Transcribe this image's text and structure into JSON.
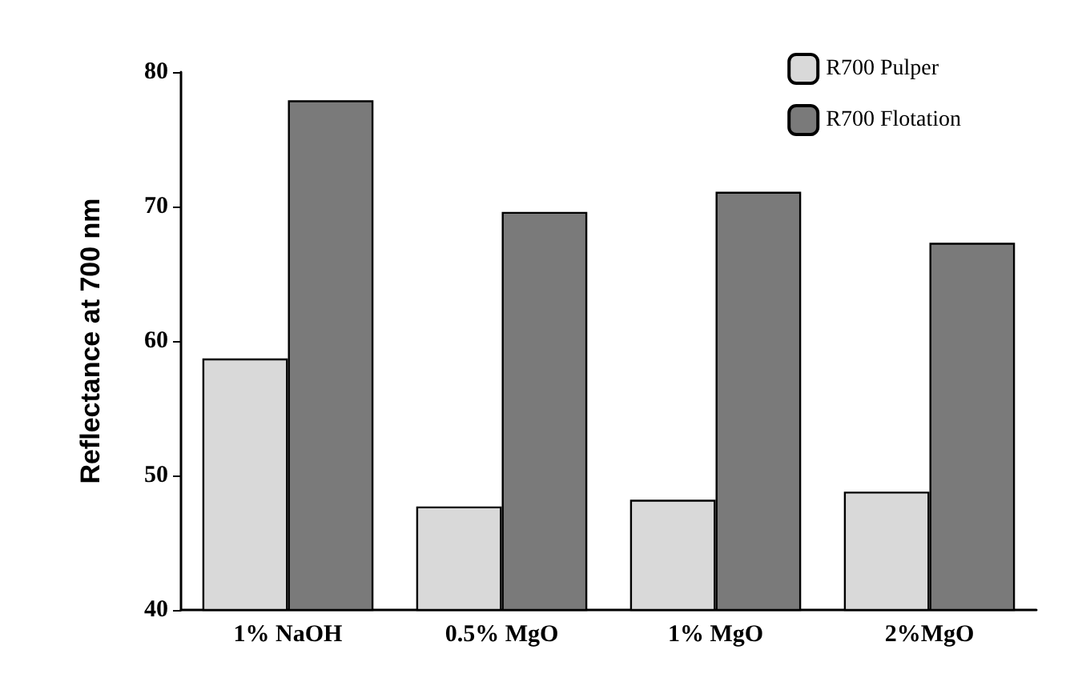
{
  "chart_data": {
    "type": "bar",
    "ylabel": "Reflectance at 700 nm",
    "categories": [
      "1% NaOH",
      "0.5% MgO",
      "1% MgO",
      "2%MgO"
    ],
    "series": [
      {
        "name": "R700 Pulper",
        "color": "#d9d9d9",
        "values": [
          58.7,
          47.7,
          48.2,
          48.8
        ]
      },
      {
        "name": "R700 Flotation",
        "color": "#7a7a7a",
        "values": [
          77.9,
          69.6,
          71.1,
          67.3
        ]
      }
    ],
    "ylim": [
      40,
      80
    ],
    "yticks": [
      40,
      50,
      60,
      70,
      80
    ],
    "grid": false,
    "legend": "top right"
  }
}
